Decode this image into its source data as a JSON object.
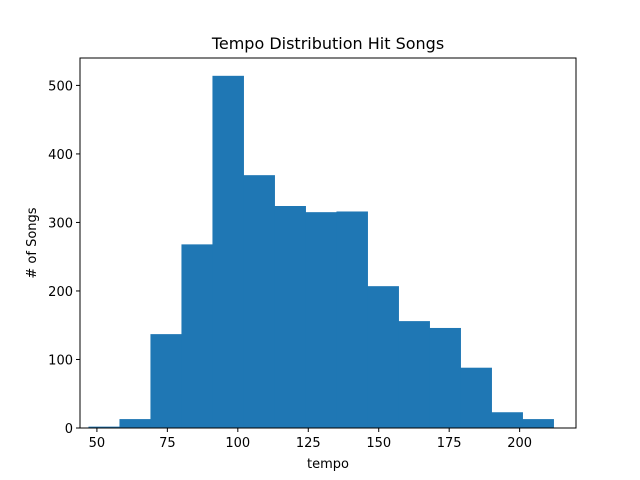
{
  "chart_data": {
    "type": "bar",
    "title": "Tempo Distribution Hit Songs",
    "xlabel": "tempo",
    "ylabel": "# of Songs",
    "xlim": [
      44,
      220
    ],
    "ylim": [
      0,
      540
    ],
    "xticks": [
      50,
      75,
      100,
      125,
      150,
      175,
      200
    ],
    "yticks": [
      0,
      100,
      200,
      300,
      400,
      500
    ],
    "bar_color": "#1f77b4",
    "grid": false,
    "bins": [
      {
        "x0": 47,
        "x1": 58,
        "count": 2
      },
      {
        "x0": 58,
        "x1": 69,
        "count": 13
      },
      {
        "x0": 69,
        "x1": 80,
        "count": 137
      },
      {
        "x0": 80,
        "x1": 91,
        "count": 268
      },
      {
        "x0": 91,
        "x1": 102,
        "count": 514
      },
      {
        "x0": 102,
        "x1": 113,
        "count": 369
      },
      {
        "x0": 113,
        "x1": 124,
        "count": 324
      },
      {
        "x0": 124,
        "x1": 135,
        "count": 315
      },
      {
        "x0": 135,
        "x1": 146,
        "count": 316
      },
      {
        "x0": 146,
        "x1": 157,
        "count": 207
      },
      {
        "x0": 157,
        "x1": 168,
        "count": 156
      },
      {
        "x0": 168,
        "x1": 179,
        "count": 146
      },
      {
        "x0": 179,
        "x1": 190,
        "count": 88
      },
      {
        "x0": 190,
        "x1": 201,
        "count": 23
      },
      {
        "x0": 201,
        "x1": 212,
        "count": 13
      }
    ]
  }
}
